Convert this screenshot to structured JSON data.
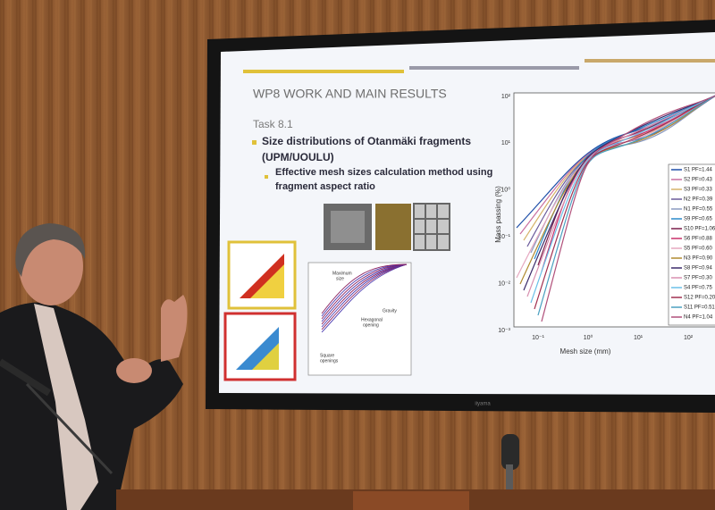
{
  "slide": {
    "title": "WP8 WORK AND MAIN RESULTS",
    "task": "Task 8.1",
    "bullet": [
      "Size distributions of Otanmäki fragments",
      "(UPM/UOULU)"
    ],
    "sub_bullet": [
      "Effective mesh sizes calculation method using",
      "fragment aspect ratio"
    ],
    "small_chart": {
      "labels": [
        "Maximum",
        "size",
        "Gravity",
        "Hexagonal",
        "opening",
        "Square",
        "openings"
      ]
    },
    "chart": {
      "y_label": "Mass passing (%)",
      "x_label": "Mesh size (mm)",
      "yticks": [
        "10²",
        "10¹",
        "10⁰",
        "10⁻¹",
        "10⁻²",
        "10⁻³"
      ],
      "xticks": [
        "10⁻¹",
        "10⁰",
        "10¹",
        "10²"
      ],
      "legend": [
        {
          "name": "S1  PF=1.44",
          "color": "#1f4fa8"
        },
        {
          "name": "S2  PF=0.43",
          "color": "#c96fa0"
        },
        {
          "name": "S3  PF=0.33",
          "color": "#d6b36a"
        },
        {
          "name": "N2  PF=0.39",
          "color": "#6a5a9a"
        },
        {
          "name": "N1  PF=0.55",
          "color": "#8a9ac0"
        },
        {
          "name": "S9  PF=0.65",
          "color": "#2a8acb"
        },
        {
          "name": "S10 PF=1.06",
          "color": "#7a1f4a"
        },
        {
          "name": "S6  PF=0.88",
          "color": "#c8306a"
        },
        {
          "name": "S5  PF=0.60",
          "color": "#e6a8c0"
        },
        {
          "name": "N3  PF=0.90",
          "color": "#b08a30"
        },
        {
          "name": "S8  PF=0.94",
          "color": "#3a2a6a"
        },
        {
          "name": "S7  PF=0.30",
          "color": "#d890b0"
        },
        {
          "name": "S4  PF=0.75",
          "color": "#6ac0e8"
        },
        {
          "name": "S12 PF=0.20",
          "color": "#a03050"
        },
        {
          "name": "S11 PF=0.51",
          "color": "#4aa0c0"
        },
        {
          "name": "N4  PF=1.04",
          "color": "#b0507a"
        }
      ]
    }
  },
  "monitor_brand": "iiyama"
}
